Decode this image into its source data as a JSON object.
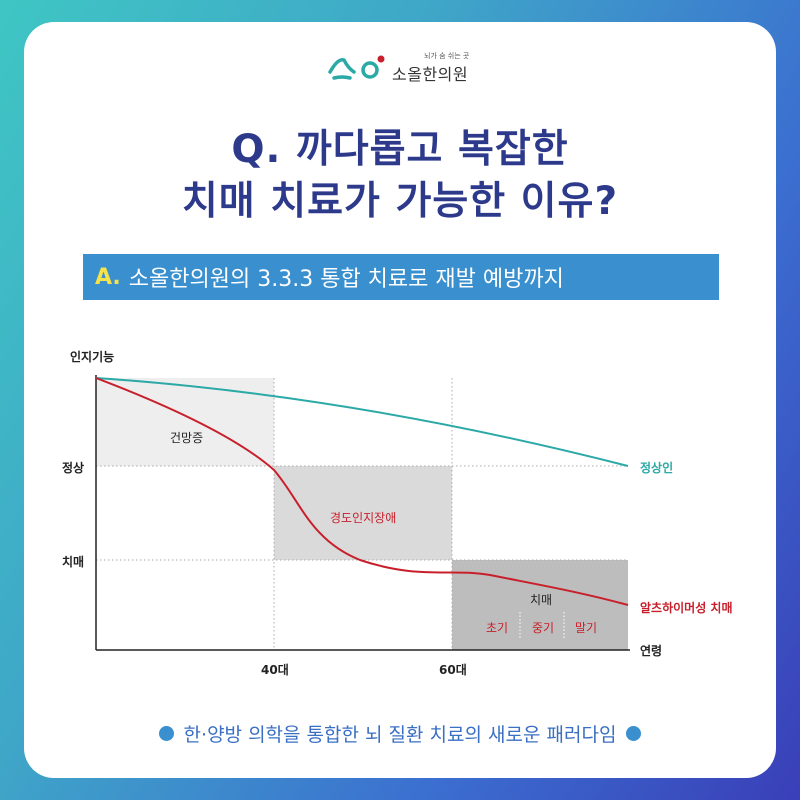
{
  "brand": {
    "tagline": "뇌가 숨 쉬는 곳",
    "name": "소올한의원"
  },
  "question": {
    "line1": "Q. 까다롭고 복잡한",
    "line2": "치매 치료가 가능한 이유?"
  },
  "answer": {
    "prefix": "A.",
    "text": "소올한의원의 3.3.3 통합 치료로 재발 예방까지"
  },
  "chart_data": {
    "type": "line",
    "ylabel": "인지기능",
    "xlabel": "연령",
    "y_levels": [
      "정상",
      "치매"
    ],
    "x_ticks": [
      "40대",
      "60대"
    ],
    "series": [
      {
        "name": "정상인",
        "color": "#2aa9a6"
      },
      {
        "name": "알츠하이머성 치매",
        "color": "#c8202b"
      }
    ],
    "regions": [
      {
        "label": "건망증"
      },
      {
        "label": "경도인지장애"
      },
      {
        "label": "치매",
        "stages": [
          "초기",
          "중기",
          "말기"
        ]
      }
    ]
  },
  "footer": {
    "text": "한·양방 의학을 통합한 뇌 질환 치료의 새로운 패러다임"
  }
}
